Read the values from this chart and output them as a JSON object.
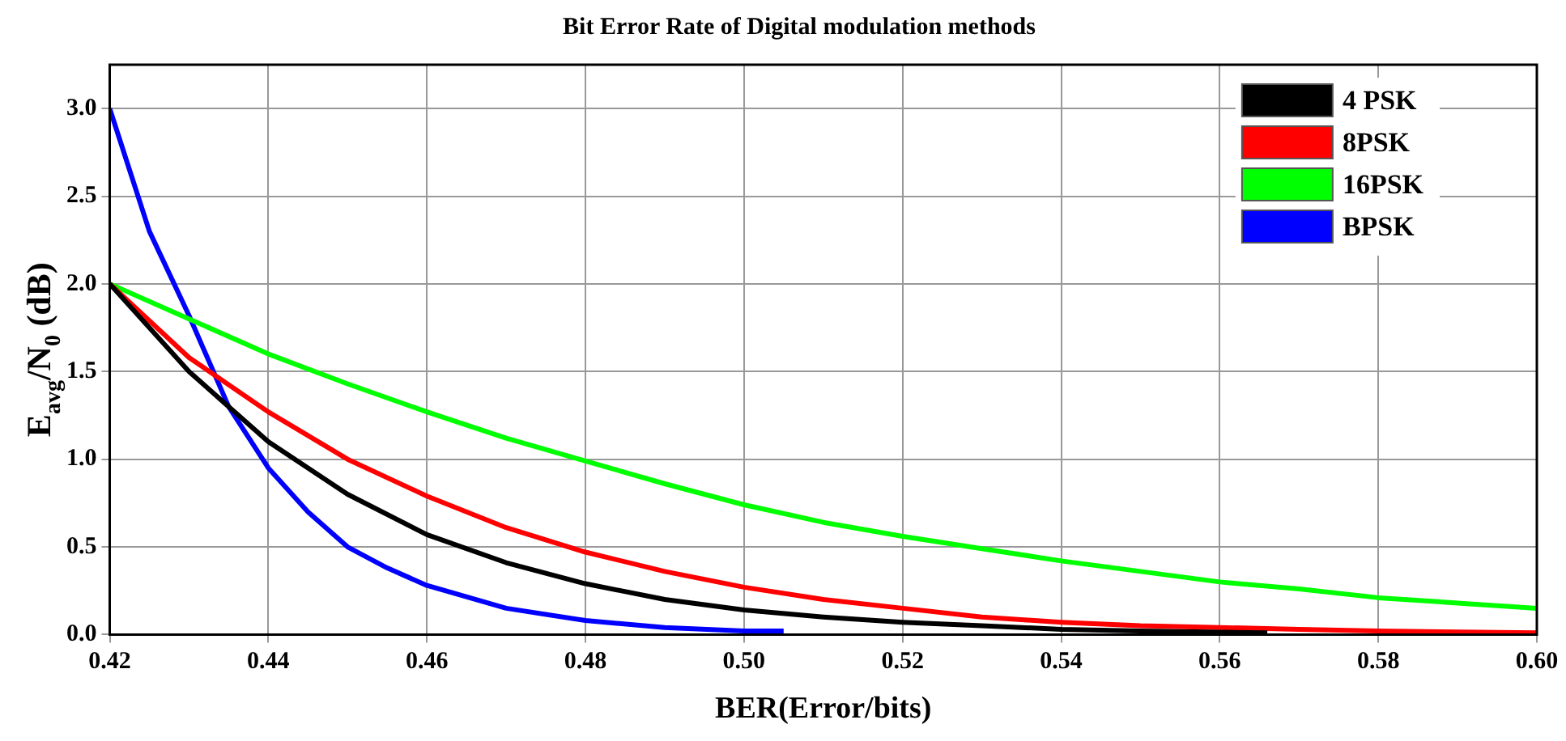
{
  "chart_data": {
    "type": "line",
    "title": "Bit Error Rate of Digital modulation methods",
    "xlabel": "BER(Error/bits)",
    "ylabel": "E$_{avg}$/N$_{0}$ (dB)",
    "series": [
      {
        "name": "4 PSK",
        "color": "#000000",
        "x": [
          0.42,
          0.43,
          0.435,
          0.44,
          0.45,
          0.46,
          0.47,
          0.48,
          0.49,
          0.5,
          0.51,
          0.52,
          0.53,
          0.54,
          0.55,
          0.566
        ],
        "values": [
          2.0,
          1.5,
          1.3,
          1.1,
          0.8,
          0.57,
          0.41,
          0.29,
          0.2,
          0.14,
          0.1,
          0.07,
          0.05,
          0.03,
          0.02,
          0.01
        ]
      },
      {
        "name": "8PSK",
        "color": "#ff0000",
        "x": [
          0.42,
          0.43,
          0.44,
          0.45,
          0.46,
          0.47,
          0.48,
          0.49,
          0.5,
          0.51,
          0.52,
          0.53,
          0.54,
          0.55,
          0.56,
          0.57,
          0.58,
          0.6
        ],
        "values": [
          2.0,
          1.58,
          1.27,
          1.0,
          0.79,
          0.61,
          0.47,
          0.36,
          0.27,
          0.2,
          0.15,
          0.1,
          0.07,
          0.05,
          0.04,
          0.03,
          0.02,
          0.01
        ]
      },
      {
        "name": "16PSK",
        "color": "#00ff00",
        "x": [
          0.42,
          0.43,
          0.44,
          0.45,
          0.46,
          0.47,
          0.48,
          0.49,
          0.5,
          0.51,
          0.52,
          0.53,
          0.54,
          0.55,
          0.56,
          0.57,
          0.58,
          0.59,
          0.6
        ],
        "values": [
          2.0,
          1.8,
          1.6,
          1.43,
          1.27,
          1.12,
          0.99,
          0.86,
          0.74,
          0.64,
          0.56,
          0.49,
          0.42,
          0.36,
          0.3,
          0.26,
          0.21,
          0.18,
          0.15
        ]
      },
      {
        "name": "BPSK",
        "color": "#0000ff",
        "x": [
          0.42,
          0.425,
          0.43,
          0.435,
          0.44,
          0.445,
          0.45,
          0.455,
          0.46,
          0.47,
          0.48,
          0.49,
          0.5,
          0.505
        ],
        "values": [
          3.0,
          2.3,
          1.82,
          1.3,
          0.95,
          0.7,
          0.5,
          0.38,
          0.28,
          0.15,
          0.08,
          0.04,
          0.02,
          0.02
        ]
      }
    ],
    "xlim": [
      0.42,
      0.6
    ],
    "xticks": [
      0.42,
      0.44,
      0.46,
      0.48,
      {
        "value": 0.5,
        "label": "0.50"
      },
      0.52,
      0.54,
      0.56,
      0.58,
      {
        "value": 0.6,
        "label": "0.60"
      }
    ],
    "ylim": [
      0,
      3.25
    ],
    "yticks": [
      {
        "value": 0,
        "label": "0.0"
      },
      0.5,
      {
        "value": 1,
        "label": "1.0"
      },
      1.5,
      {
        "value": 2,
        "label": "2.0"
      },
      2.5,
      {
        "value": 3,
        "label": "3.0"
      }
    ],
    "grid": true,
    "legend": "top right",
    "marker": "none",
    "line_style": "solid"
  }
}
